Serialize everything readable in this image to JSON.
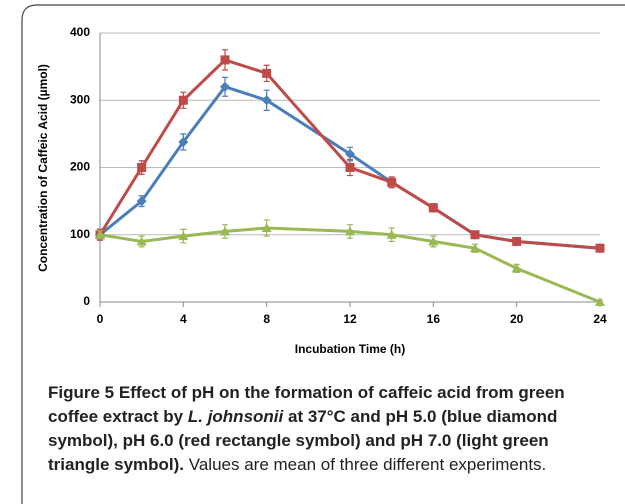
{
  "chart_data": {
    "type": "line",
    "xlabel": "Incubation Time (h)",
    "ylabel": "Concentration of Caffeic Acid (µmol)",
    "x": [
      0,
      2,
      4,
      6,
      8,
      12,
      14,
      16,
      18,
      20,
      24
    ],
    "xlim": [
      0,
      24
    ],
    "xticks": [
      0,
      4,
      8,
      12,
      16,
      20,
      24
    ],
    "ylim": [
      0,
      400
    ],
    "yticks": [
      0,
      100,
      200,
      300,
      400
    ],
    "grid": true,
    "series": [
      {
        "color": "#4a7ebb",
        "marker": "diamond",
        "values": [
          100,
          150,
          238,
          320,
          300,
          220,
          178,
          140,
          100,
          90,
          80
        ],
        "errors": [
          8,
          8,
          12,
          14,
          15,
          10,
          8,
          6,
          5,
          5,
          5
        ]
      },
      {
        "color": "#be4b48",
        "marker": "square",
        "values": [
          100,
          200,
          300,
          360,
          340,
          200,
          178,
          140,
          100,
          90,
          80
        ],
        "errors": [
          8,
          10,
          12,
          15,
          12,
          12,
          8,
          6,
          5,
          5,
          5
        ]
      },
      {
        "color": "#98b954",
        "marker": "triangle",
        "values": [
          100,
          90,
          98,
          105,
          110,
          105,
          100,
          90,
          80,
          50,
          0
        ],
        "errors": [
          6,
          8,
          10,
          10,
          12,
          10,
          10,
          8,
          6,
          6,
          3
        ]
      }
    ]
  },
  "caption": {
    "label": "Figure 5",
    "title_before": "Effect of pH on the formation of caffeic acid from green coffee extract by",
    "title_italic": "L. johnsonii",
    "title_after": "at 37°C and pH 5.0 (blue diamond symbol), pH 6.0 (red rectangle symbol) and pH 7.0 (light green triangle symbol).",
    "note": "Values are mean of three different experiments."
  }
}
